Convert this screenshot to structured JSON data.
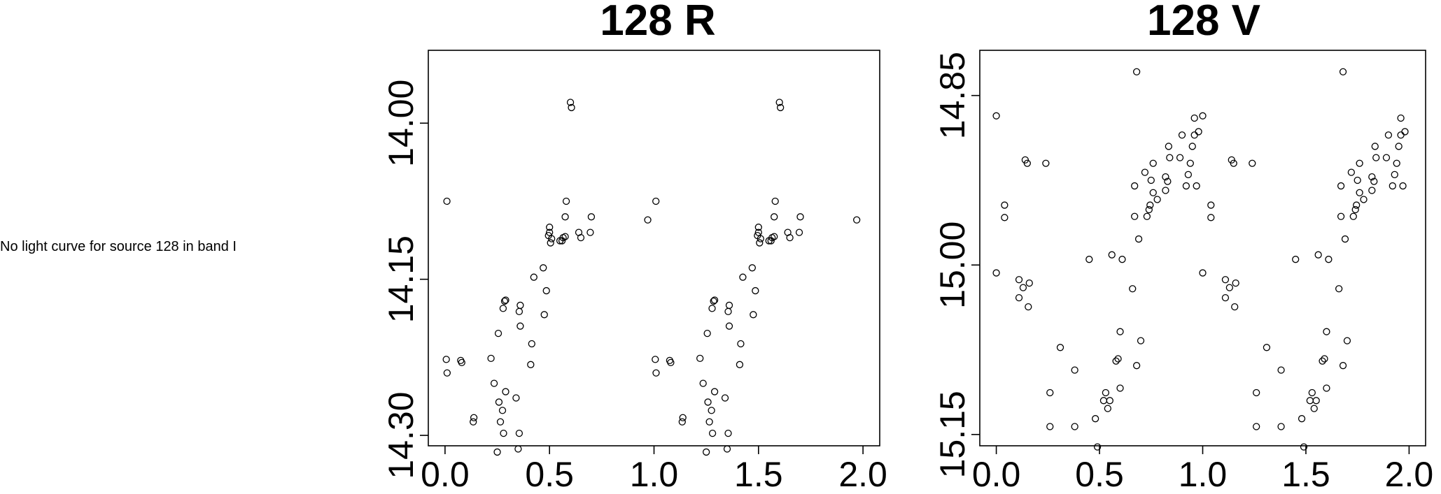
{
  "message": "No light curve for source 128 in band I",
  "chart_data": [
    {
      "type": "scatter",
      "title": "128 R",
      "xlabel": "",
      "ylabel": "",
      "xlim": [
        -0.08,
        2.08
      ],
      "ylim": [
        14.31,
        13.93
      ],
      "y_inverted": true,
      "xticks": [
        0.0,
        0.5,
        1.0,
        1.5,
        2.0
      ],
      "xtick_labels": [
        "0.0",
        "0.5",
        "1.0",
        "1.5",
        "2.0"
      ],
      "yticks": [
        14.0,
        14.15,
        14.3
      ],
      "ytick_labels": [
        "14.00",
        "14.15",
        "14.30"
      ],
      "grid": false,
      "marker": "open-circle",
      "phase": [
        0.009,
        0.006,
        0.01,
        0.075,
        0.08,
        0.135,
        0.138,
        0.22,
        0.235,
        0.25,
        0.255,
        0.258,
        0.265,
        0.275,
        0.278,
        0.28,
        0.285,
        0.29,
        0.29,
        0.34,
        0.35,
        0.355,
        0.355,
        0.36,
        0.36,
        0.41,
        0.415,
        0.425,
        0.47,
        0.475,
        0.485,
        0.495,
        0.5,
        0.5,
        0.505,
        0.51,
        0.55,
        0.56,
        0.565,
        0.575,
        0.575,
        0.58,
        0.6,
        0.605,
        0.64,
        0.65,
        0.695,
        0.7,
        0.97
      ],
      "magnitude": [
        14.075,
        14.227,
        14.24,
        14.228,
        14.23,
        14.287,
        14.283,
        14.226,
        14.25,
        14.316,
        14.202,
        14.268,
        14.287,
        14.276,
        14.178,
        14.298,
        14.171,
        14.17,
        14.258,
        14.264,
        14.313,
        14.298,
        14.181,
        14.175,
        14.195,
        14.232,
        14.212,
        14.148,
        14.139,
        14.184,
        14.161,
        14.108,
        14.105,
        14.1,
        14.115,
        14.111,
        14.113,
        14.113,
        14.11,
        14.109,
        14.09,
        14.075,
        13.98,
        13.985,
        14.105,
        14.11,
        14.105,
        14.09,
        14.093
      ]
    },
    {
      "type": "scatter",
      "title": "128 V",
      "xlabel": "",
      "ylabel": "",
      "xlim": [
        -0.08,
        2.08
      ],
      "ylim": [
        15.16,
        14.81
      ],
      "y_inverted": true,
      "xticks": [
        0.0,
        0.5,
        1.0,
        1.5,
        2.0
      ],
      "xtick_labels": [
        "0.0",
        "0.5",
        "1.0",
        "1.5",
        "2.0"
      ],
      "yticks": [
        14.85,
        15.0,
        15.15
      ],
      "ytick_labels": [
        "14.85",
        "15.00",
        "15.15"
      ],
      "grid": false,
      "marker": "open-circle",
      "phase": [
        0.0,
        0.0,
        0.04,
        0.04,
        0.11,
        0.11,
        0.13,
        0.14,
        0.15,
        0.155,
        0.16,
        0.24,
        0.26,
        0.26,
        0.31,
        0.38,
        0.38,
        0.45,
        0.48,
        0.49,
        0.52,
        0.53,
        0.54,
        0.55,
        0.56,
        0.58,
        0.59,
        0.6,
        0.61,
        0.6,
        0.66,
        0.67,
        0.67,
        0.68,
        0.68,
        0.69,
        0.7,
        0.72,
        0.73,
        0.74,
        0.745,
        0.75,
        0.76,
        0.76,
        0.78,
        0.82,
        0.82,
        0.83,
        0.835,
        0.84,
        0.89,
        0.9,
        0.92,
        0.93,
        0.94,
        0.95,
        0.96,
        0.96,
        0.97,
        0.98
      ],
      "magnitude": [
        14.868,
        15.007,
        14.947,
        14.958,
        15.013,
        15.029,
        15.02,
        14.907,
        14.91,
        15.037,
        15.016,
        14.91,
        15.113,
        15.143,
        15.073,
        15.093,
        15.143,
        14.995,
        15.136,
        15.161,
        15.12,
        15.113,
        15.127,
        15.12,
        14.991,
        15.085,
        15.083,
        15.109,
        14.995,
        15.059,
        15.021,
        14.93,
        14.957,
        15.089,
        14.829,
        14.977,
        15.067,
        14.918,
        14.957,
        14.951,
        14.947,
        14.925,
        14.936,
        14.91,
        14.942,
        14.934,
        14.922,
        14.926,
        14.895,
        14.905,
        14.905,
        14.885,
        14.93,
        14.92,
        14.91,
        14.895,
        14.885,
        14.87,
        14.93,
        14.882
      ]
    }
  ]
}
